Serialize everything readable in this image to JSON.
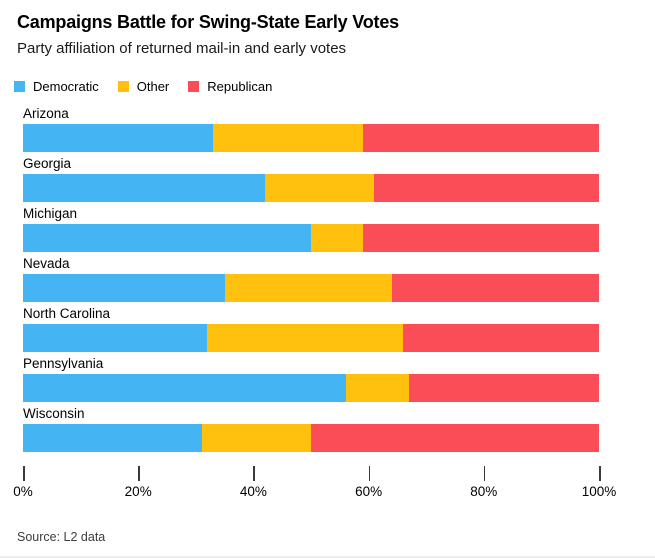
{
  "header": {
    "title": "Campaigns Battle for Swing-State Early Votes",
    "subtitle": "Party affiliation of returned mail-in and early votes"
  },
  "legend": [
    {
      "label": "Democratic",
      "color": "#45B4F2"
    },
    {
      "label": "Other",
      "color": "#FFC10E"
    },
    {
      "label": "Republican",
      "color": "#FB4D57"
    }
  ],
  "chart_data": {
    "type": "bar",
    "orientation": "horizontal",
    "stacked": true,
    "title": "Campaigns Battle for Swing-State Early Votes",
    "subtitle": "Party affiliation of returned mail-in and early votes",
    "categories": [
      "Arizona",
      "Georgia",
      "Michigan",
      "Nevada",
      "North Carolina",
      "Pennsylvania",
      "Wisconsin"
    ],
    "series": [
      {
        "name": "Democratic",
        "color": "#45B4F2",
        "values": [
          33,
          42,
          50,
          35,
          32,
          56,
          31
        ]
      },
      {
        "name": "Other",
        "color": "#FFC10E",
        "values": [
          26,
          19,
          9,
          29,
          34,
          11,
          19
        ]
      },
      {
        "name": "Republican",
        "color": "#FB4D57",
        "values": [
          41,
          39,
          41,
          36,
          34,
          33,
          50
        ]
      }
    ],
    "xlim": [
      0,
      100
    ],
    "x_ticks": [
      "0%",
      "20%",
      "40%",
      "60%",
      "80%",
      "100%"
    ],
    "x_tick_values": [
      0,
      20,
      40,
      60,
      80,
      100
    ],
    "grid": false,
    "legend_position": "top"
  },
  "source": "Source: L2 data"
}
